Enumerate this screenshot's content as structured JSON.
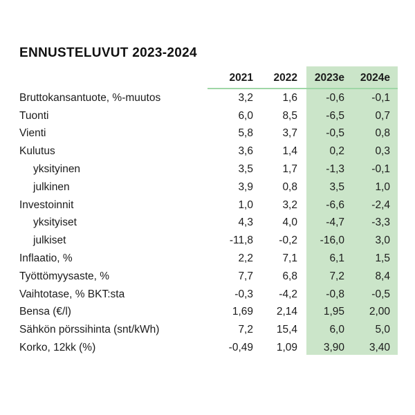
{
  "title": "ENNUSTELUVUT 2023-2024",
  "table": {
    "columns": [
      "2021",
      "2022",
      "2023e",
      "2024e"
    ],
    "rows": [
      {
        "label": "Bruttokansantuote, %-muutos",
        "indent": false,
        "values": [
          "3,2",
          "1,6",
          "-0,6",
          "-0,1"
        ]
      },
      {
        "label": "Tuonti",
        "indent": false,
        "values": [
          "6,0",
          "8,5",
          "-6,5",
          "0,7"
        ]
      },
      {
        "label": "Vienti",
        "indent": false,
        "values": [
          "5,8",
          "3,7",
          "-0,5",
          "0,8"
        ]
      },
      {
        "label": "Kulutus",
        "indent": false,
        "values": [
          "3,6",
          "1,4",
          "0,2",
          "0,3"
        ]
      },
      {
        "label": "yksityinen",
        "indent": true,
        "values": [
          "3,5",
          "1,7",
          "-1,3",
          "-0,1"
        ]
      },
      {
        "label": "julkinen",
        "indent": true,
        "values": [
          "3,9",
          "0,8",
          "3,5",
          "1,0"
        ]
      },
      {
        "label": "Investoinnit",
        "indent": false,
        "values": [
          "1,0",
          "3,2",
          "-6,6",
          "-2,4"
        ]
      },
      {
        "label": "yksityiset",
        "indent": true,
        "values": [
          "4,3",
          "4,0",
          "-4,7",
          "-3,3"
        ]
      },
      {
        "label": "julkiset",
        "indent": true,
        "values": [
          "-11,8",
          "-0,2",
          "-16,0",
          "3,0"
        ]
      },
      {
        "label": "Inflaatio, %",
        "indent": false,
        "values": [
          "2,2",
          "7,1",
          "6,1",
          "1,5"
        ]
      },
      {
        "label": "Työttömyysaste, %",
        "indent": false,
        "values": [
          "7,7",
          "6,8",
          "7,2",
          "8,4"
        ]
      },
      {
        "label": "Vaihtotase, % BKT:sta",
        "indent": false,
        "values": [
          "-0,3",
          "-4,2",
          "-0,8",
          "-0,5"
        ]
      },
      {
        "label": "Bensa (€/l)",
        "indent": false,
        "values": [
          "1,69",
          "2,14",
          "1,95",
          "2,00"
        ]
      },
      {
        "label": "Sähkön pörssihinta (snt/kWh)",
        "indent": false,
        "values": [
          "7,2",
          "15,4",
          "6,0",
          "5,0"
        ]
      },
      {
        "label": "Korko, 12kk (%)",
        "indent": false,
        "values": [
          "-0,49",
          "1,09",
          "3,90",
          "3,40"
        ]
      }
    ]
  },
  "colors": {
    "highlight_bg": "#cbe5c9",
    "header_underline": "#9fd6a6",
    "text": "#1b1b1b"
  },
  "chart_data": {
    "type": "table",
    "title": "ENNUSTELUVUT 2023-2024",
    "columns": [
      "2021",
      "2022",
      "2023e",
      "2024e"
    ],
    "highlighted_columns": [
      "2023e",
      "2024e"
    ],
    "rows": [
      {
        "label": "Bruttokansantuote, %-muutos",
        "values": [
          3.2,
          1.6,
          -0.6,
          -0.1
        ]
      },
      {
        "label": "Tuonti",
        "values": [
          6.0,
          8.5,
          -6.5,
          0.7
        ]
      },
      {
        "label": "Vienti",
        "values": [
          5.8,
          3.7,
          -0.5,
          0.8
        ]
      },
      {
        "label": "Kulutus",
        "values": [
          3.6,
          1.4,
          0.2,
          0.3
        ]
      },
      {
        "label": "Kulutus / yksityinen",
        "values": [
          3.5,
          1.7,
          -1.3,
          -0.1
        ]
      },
      {
        "label": "Kulutus / julkinen",
        "values": [
          3.9,
          0.8,
          3.5,
          1.0
        ]
      },
      {
        "label": "Investoinnit",
        "values": [
          1.0,
          3.2,
          -6.6,
          -2.4
        ]
      },
      {
        "label": "Investoinnit / yksityiset",
        "values": [
          4.3,
          4.0,
          -4.7,
          -3.3
        ]
      },
      {
        "label": "Investoinnit / julkiset",
        "values": [
          -11.8,
          -0.2,
          -16.0,
          3.0
        ]
      },
      {
        "label": "Inflaatio, %",
        "values": [
          2.2,
          7.1,
          6.1,
          1.5
        ]
      },
      {
        "label": "Työttömyysaste, %",
        "values": [
          7.7,
          6.8,
          7.2,
          8.4
        ]
      },
      {
        "label": "Vaihtotase, % BKT:sta",
        "values": [
          -0.3,
          -4.2,
          -0.8,
          -0.5
        ]
      },
      {
        "label": "Bensa (€/l)",
        "values": [
          1.69,
          2.14,
          1.95,
          2.0
        ]
      },
      {
        "label": "Sähkön pörssihinta (snt/kWh)",
        "values": [
          7.2,
          15.4,
          6.0,
          5.0
        ]
      },
      {
        "label": "Korko, 12kk (%)",
        "values": [
          -0.49,
          1.09,
          3.9,
          3.4
        ]
      }
    ]
  }
}
